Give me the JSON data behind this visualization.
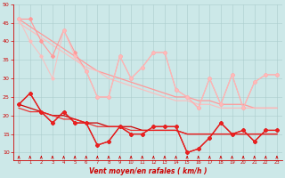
{
  "x": [
    0,
    1,
    2,
    3,
    4,
    5,
    6,
    7,
    8,
    9,
    10,
    11,
    12,
    13,
    14,
    15,
    16,
    17,
    18,
    19,
    20,
    21,
    22,
    23
  ],
  "gust_line1": [
    46,
    46,
    40,
    36,
    43,
    37,
    32,
    25,
    25,
    36,
    30,
    33,
    37,
    37,
    27,
    25,
    22,
    30,
    23,
    31,
    22,
    29,
    31,
    31
  ],
  "gust_line2": [
    46,
    40,
    36,
    30,
    43,
    36,
    32,
    25,
    25,
    36,
    30,
    33,
    37,
    37,
    27,
    25,
    22,
    30,
    23,
    31,
    22,
    29,
    31,
    31
  ],
  "gust_trend1": [
    46,
    44,
    42,
    40,
    38,
    36,
    34,
    32,
    31,
    30,
    29,
    28,
    27,
    26,
    25,
    25,
    24,
    24,
    23,
    23,
    23,
    22,
    22,
    22
  ],
  "gust_trend2": [
    45,
    43,
    41,
    39,
    37,
    35,
    33,
    32,
    30,
    29,
    28,
    27,
    26,
    25,
    24,
    24,
    23,
    23,
    22,
    22,
    22,
    22,
    22,
    22
  ],
  "mean_line1": [
    23,
    26,
    21,
    18,
    21,
    18,
    18,
    12,
    13,
    17,
    15,
    15,
    17,
    17,
    17,
    10,
    11,
    14,
    18,
    15,
    16,
    13,
    16,
    16
  ],
  "mean_line2": [
    23,
    26,
    21,
    18,
    21,
    18,
    18,
    12,
    13,
    17,
    15,
    15,
    17,
    17,
    17,
    10,
    11,
    14,
    18,
    15,
    16,
    13,
    16,
    16
  ],
  "mean_trend1": [
    23,
    22,
    21,
    20,
    20,
    19,
    18,
    18,
    17,
    17,
    17,
    16,
    16,
    16,
    16,
    15,
    15,
    15,
    15,
    15,
    15,
    15,
    15,
    15
  ],
  "mean_trend2": [
    22,
    21,
    21,
    20,
    19,
    19,
    18,
    17,
    17,
    17,
    16,
    16,
    16,
    16,
    16,
    15,
    15,
    15,
    15,
    15,
    15,
    15,
    15,
    15
  ],
  "arrow_angles": [
    0,
    315,
    315,
    0,
    0,
    45,
    45,
    0,
    0,
    45,
    0,
    0,
    0,
    0,
    0,
    45,
    315,
    315,
    315,
    315,
    0,
    0,
    0,
    0
  ],
  "background_color": "#cce8e8",
  "grid_color": "#aacccc",
  "color_gust": "#ff9999",
  "color_gust2": "#ffbbbb",
  "color_mean": "#cc0000",
  "color_mean2": "#ee2222",
  "xlabel": "Vent moyen/en rafales ( km/h )",
  "ylim": [
    8,
    50
  ],
  "yticks": [
    10,
    15,
    20,
    25,
    30,
    35,
    40,
    45,
    50
  ],
  "ytick_labels": [
    "10",
    "15",
    "20",
    "25",
    "30",
    "35",
    "40",
    "45",
    "50"
  ]
}
